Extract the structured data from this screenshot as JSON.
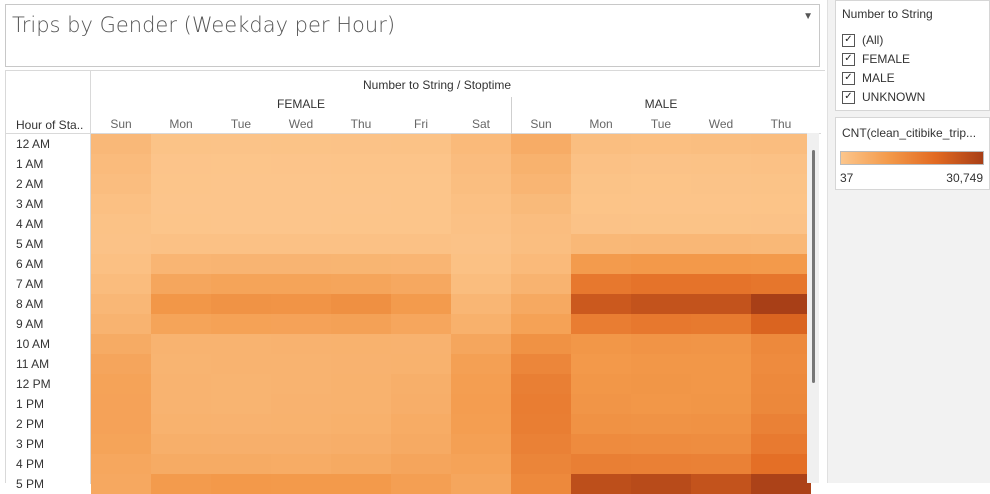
{
  "title": "Trips by Gender (Weekday per Hour)",
  "column_header": "Number to String / Stoptime",
  "row_header": "Hour of Sta..",
  "filter": {
    "title": "Number to String",
    "options": [
      {
        "label": "(All)",
        "checked": true
      },
      {
        "label": "FEMALE",
        "checked": true
      },
      {
        "label": "MALE",
        "checked": true
      },
      {
        "label": "UNKNOWN",
        "checked": true
      }
    ]
  },
  "legend": {
    "title": "CNT(clean_citibike_trip...",
    "min_label": "37",
    "max_label": "30,749",
    "colors": [
      "#fcc68c",
      "#f39a4b",
      "#e26a22",
      "#a83f17"
    ]
  },
  "chart_data": {
    "type": "heatmap",
    "title": "Trips by Gender (Weekday per Hour)",
    "column_header": "Number to String / Stoptime",
    "row_header": "Hour of Sta..",
    "color_range": [
      37,
      30749
    ],
    "hours": [
      "12 AM",
      "1 AM",
      "2 AM",
      "3 AM",
      "4 AM",
      "5 AM",
      "6 AM",
      "7 AM",
      "8 AM",
      "9 AM",
      "10 AM",
      "11 AM",
      "12 PM",
      "1 PM",
      "2 PM",
      "3 PM",
      "4 PM",
      "5 PM"
    ],
    "groups": [
      {
        "name": "FEMALE",
        "days": [
          "Sun",
          "Mon",
          "Tue",
          "Wed",
          "Thu",
          "Fri",
          "Sat"
        ],
        "values": [
          [
            3200,
            800,
            700,
            800,
            900,
            1000,
            2800
          ],
          [
            2600,
            400,
            300,
            400,
            450,
            500,
            2300
          ],
          [
            2100,
            300,
            200,
            250,
            300,
            350,
            2000
          ],
          [
            1500,
            250,
            200,
            200,
            250,
            300,
            1500
          ],
          [
            1000,
            300,
            250,
            250,
            300,
            300,
            1100
          ],
          [
            900,
            1200,
            1200,
            1200,
            1200,
            1100,
            900
          ],
          [
            1400,
            4000,
            4200,
            4200,
            4100,
            3900,
            1300
          ],
          [
            2400,
            7500,
            8000,
            8000,
            7800,
            7000,
            2200
          ],
          [
            3500,
            11000,
            11800,
            11500,
            12500,
            10000,
            3800
          ],
          [
            4500,
            8000,
            8500,
            8300,
            8600,
            7400,
            5000
          ],
          [
            6300,
            4400,
            4500,
            4600,
            4700,
            4600,
            7500
          ],
          [
            7600,
            4300,
            4400,
            4400,
            4600,
            4700,
            8800
          ],
          [
            8200,
            4400,
            4300,
            4500,
            4700,
            5400,
            9400
          ],
          [
            8300,
            4500,
            4300,
            4600,
            4800,
            5600,
            9500
          ],
          [
            8300,
            4700,
            4600,
            4800,
            5000,
            6200,
            9400
          ],
          [
            8000,
            5400,
            5300,
            5300,
            5600,
            6500,
            8800
          ],
          [
            7300,
            6400,
            6400,
            6200,
            6600,
            7600,
            8200
          ],
          [
            7000,
            10000,
            10500,
            10200,
            10300,
            9000,
            7500
          ]
        ]
      },
      {
        "name": "MALE",
        "days": [
          "Sun",
          "Mon",
          "Tue",
          "Wed",
          "Thu"
        ],
        "values": [
          [
            6000,
            2000,
            1700,
            1900,
            2100
          ],
          [
            4800,
            1200,
            900,
            1000,
            1200
          ],
          [
            3900,
            800,
            600,
            700,
            800
          ],
          [
            2900,
            600,
            500,
            500,
            600
          ],
          [
            2100,
            900,
            800,
            800,
            900
          ],
          [
            1900,
            3400,
            3500,
            3500,
            3400
          ],
          [
            2800,
            10000,
            10500,
            10500,
            10300
          ],
          [
            4400,
            17500,
            18500,
            18500,
            18000
          ],
          [
            6800,
            24500,
            26000,
            26000,
            30749
          ],
          [
            8500,
            16500,
            17500,
            17200,
            22000
          ],
          [
            12000,
            11000,
            11500,
            11300,
            14000
          ],
          [
            14500,
            10500,
            11000,
            11000,
            13500
          ],
          [
            16000,
            11000,
            11200,
            11000,
            14000
          ],
          [
            16500,
            11300,
            11000,
            11200,
            14200
          ],
          [
            16200,
            12000,
            11800,
            12000,
            15500
          ],
          [
            15600,
            13500,
            13200,
            13000,
            17000
          ],
          [
            14800,
            16000,
            15800,
            15500,
            19500
          ],
          [
            14000,
            27000,
            28000,
            26000,
            30000
          ]
        ]
      }
    ]
  }
}
